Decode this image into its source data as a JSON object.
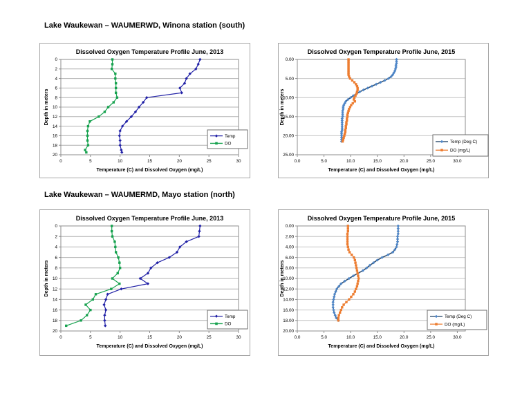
{
  "page": {
    "background": "#ffffff"
  },
  "sections": [
    {
      "heading": "Lake Waukewan – WAUMERWD, Winona station (south)"
    },
    {
      "heading": "Lake Waukewan – WAUMERMD, Mayo station (north)"
    }
  ],
  "colors": {
    "temp_2013": "#2121A6",
    "do_2013": "#17A24F",
    "temp_2015_line": "#2F4D6E",
    "temp_2015_marker": "#4E86C8",
    "do_2015": "#ED7D31",
    "grid_2013": "#B0B0B0",
    "grid_2015": "#C4C4C4",
    "plot_border": "#8C8C8C",
    "chart_border": "#A6A6A6",
    "legend_border": "#6E6E6E"
  },
  "chart_data": [
    {
      "id": "winona-2013",
      "type": "line",
      "title": "Dissolved Oxygen  Temperature Profile June, 2013",
      "xlabel": "Temperature (C) and Dissolved Oxygen (mg/L)",
      "ylabel": "Depth in meters",
      "x_range": [
        0,
        30
      ],
      "x_ticks": [
        0,
        5,
        10,
        15,
        20,
        25,
        30
      ],
      "x_tick_labels": [
        "0",
        "5",
        "10",
        "15",
        "20",
        "25",
        "30"
      ],
      "y_range": [
        0,
        20
      ],
      "y_ticks": [
        0,
        2,
        4,
        6,
        8,
        10,
        12,
        14,
        16,
        18,
        20
      ],
      "y_tick_labels": [
        "0",
        "2",
        "4",
        "6",
        "8",
        "10",
        "12",
        "14",
        "16",
        "18",
        "20"
      ],
      "grid": "horizontal",
      "legend_position": "inside-right-lower",
      "series": [
        {
          "name": "Temp",
          "marker": "diamond",
          "line_color": "#2121A6",
          "marker_color": "#2121A6",
          "depths": [
            0,
            1,
            2,
            3,
            4,
            5,
            6,
            7,
            8,
            9,
            10,
            11,
            12,
            13,
            14,
            15,
            16,
            17,
            18,
            19,
            19.5
          ],
          "values": [
            23.5,
            23.2,
            22.8,
            21.8,
            21.2,
            20.9,
            20.1,
            20.4,
            14.5,
            13.9,
            13.2,
            12.6,
            11.9,
            11.1,
            10.4,
            10.0,
            9.9,
            10.0,
            10.0,
            10.2,
            10.3
          ]
        },
        {
          "name": "DO",
          "marker": "square",
          "line_color": "#17A24F",
          "marker_color": "#17A24F",
          "depths": [
            0,
            1,
            2,
            3,
            4,
            5,
            6,
            7,
            8,
            9,
            10,
            11,
            12,
            13,
            14,
            15,
            16,
            17,
            18,
            19,
            19.5
          ],
          "values": [
            8.7,
            8.7,
            8.6,
            9.2,
            9.2,
            9.3,
            9.3,
            9.3,
            9.5,
            8.9,
            8.0,
            7.4,
            6.4,
            4.9,
            4.6,
            4.5,
            4.5,
            4.5,
            4.6,
            4.1,
            4.3
          ]
        }
      ]
    },
    {
      "id": "winona-2015",
      "type": "line",
      "title": "Dissolved Oxygen  Temperature Profile June, 2015",
      "xlabel": "Temperature (C) and Dissolved Oxygen (mg/L)",
      "ylabel": "Depth in meters",
      "x_range": [
        0,
        31.5
      ],
      "x_ticks": [
        0,
        5,
        10,
        15,
        20,
        25,
        30
      ],
      "x_tick_labels": [
        "0.0",
        "5.0",
        "10.0",
        "15.0",
        "20.0",
        "25.0",
        "30.0"
      ],
      "y_range": [
        0,
        25
      ],
      "y_ticks": [
        0,
        5,
        10,
        15,
        20,
        25
      ],
      "y_tick_labels": [
        "0.00",
        "5.00",
        "10.00",
        "15.00",
        "20.00",
        "25.00"
      ],
      "grid": "horizontal",
      "legend_position": "inside-right-lower",
      "series": [
        {
          "name": "Temp (Deg C)",
          "marker": "diamond",
          "line_color": "#2F4D6E",
          "marker_color": "#4E86C8",
          "depths": [
            0,
            0.5,
            1,
            1.5,
            2,
            2.5,
            3,
            3.5,
            4,
            4.5,
            5,
            5.5,
            6,
            6.5,
            7,
            7.5,
            8,
            8.5,
            9,
            9.5,
            10,
            10.5,
            11,
            11.5,
            12,
            12.5,
            13,
            13.5,
            14,
            14.5,
            15,
            15.5,
            16,
            16.5,
            17,
            17.5,
            18,
            18.5,
            19,
            19.5,
            20,
            20.5,
            21,
            21.5
          ],
          "values": [
            18.6,
            18.6,
            18.6,
            18.5,
            18.5,
            18.4,
            18.3,
            18.1,
            17.9,
            17.6,
            17.1,
            16.4,
            15.6,
            14.8,
            14.0,
            13.2,
            12.4,
            11.7,
            11.1,
            10.5,
            10.0,
            9.5,
            9.1,
            8.9,
            8.7,
            8.6,
            8.6,
            8.5,
            8.5,
            8.5,
            8.5,
            8.4,
            8.4,
            8.4,
            8.4,
            8.4,
            8.4,
            8.4,
            8.3,
            8.3,
            8.3,
            8.3,
            8.3,
            8.3
          ]
        },
        {
          "name": "DO (mg/L)",
          "marker": "square",
          "line_color": "#ED7D31",
          "marker_color": "#ED7D31",
          "depths": [
            0,
            0.5,
            1,
            1.5,
            2,
            2.5,
            3,
            3.5,
            4,
            4.5,
            5,
            5.5,
            6,
            6.5,
            7,
            7.5,
            8,
            8.5,
            9,
            9.5,
            10,
            10.5,
            11,
            11.5,
            12,
            12.5,
            13,
            13.5,
            14,
            14.5,
            15,
            15.5,
            16,
            16.5,
            17,
            17.5,
            18,
            18.5,
            19,
            19.5,
            20,
            20.5,
            21,
            21.5
          ],
          "values": [
            9.6,
            9.6,
            9.6,
            9.6,
            9.6,
            9.6,
            9.6,
            9.6,
            9.6,
            9.7,
            9.9,
            10.3,
            10.7,
            11.0,
            11.2,
            11.3,
            11.3,
            11.2,
            11.1,
            10.9,
            10.7,
            10.6,
            10.8,
            10.4,
            10.1,
            9.9,
            9.7,
            9.6,
            9.5,
            9.4,
            9.4,
            9.3,
            9.3,
            9.2,
            9.2,
            9.1,
            9.1,
            9.0,
            9.0,
            8.9,
            8.8,
            8.7,
            8.6,
            8.5
          ]
        }
      ]
    },
    {
      "id": "mayo-2013",
      "type": "line",
      "title": "Dissolved Oxygen  Temperature Profile June, 2013",
      "xlabel": "Temperature (C) and Dissolved Oxygen (mg/L)",
      "ylabel": "Depth in meters",
      "x_range": [
        0,
        30
      ],
      "x_ticks": [
        0,
        5,
        10,
        15,
        20,
        25,
        30
      ],
      "x_tick_labels": [
        "0",
        "5",
        "10",
        "15",
        "20",
        "25",
        "30"
      ],
      "y_range": [
        0,
        20
      ],
      "y_ticks": [
        0,
        2,
        4,
        6,
        8,
        10,
        12,
        14,
        16,
        18,
        20
      ],
      "y_tick_labels": [
        "0",
        "2",
        "4",
        "6",
        "8",
        "10",
        "12",
        "14",
        "16",
        "18",
        "20"
      ],
      "grid": "horizontal",
      "legend_position": "inside-right-lower",
      "series": [
        {
          "name": "Temp",
          "marker": "diamond",
          "line_color": "#2121A6",
          "marker_color": "#2121A6",
          "depths": [
            0,
            1,
            2,
            3,
            4,
            5,
            6,
            7,
            8,
            9,
            10,
            11,
            12,
            13,
            14,
            15,
            16,
            17,
            18,
            19
          ],
          "values": [
            23.5,
            23.4,
            23.3,
            21.2,
            20.1,
            19.6,
            18.3,
            16.3,
            15.2,
            14.7,
            13.4,
            14.7,
            10.2,
            7.9,
            7.6,
            7.3,
            7.6,
            7.4,
            7.4,
            7.5
          ]
        },
        {
          "name": "DO",
          "marker": "square",
          "line_color": "#17A24F",
          "marker_color": "#17A24F",
          "depths": [
            0,
            1,
            2,
            3,
            4,
            5,
            6,
            7,
            8,
            9,
            10,
            11,
            12,
            13,
            14,
            15,
            16,
            17,
            18,
            19
          ],
          "values": [
            8.6,
            8.6,
            8.7,
            9.1,
            9.2,
            9.3,
            9.7,
            9.9,
            10.0,
            9.6,
            8.7,
            9.9,
            8.5,
            5.9,
            5.4,
            4.2,
            5.0,
            4.4,
            3.4,
            0.9
          ]
        }
      ]
    },
    {
      "id": "mayo-2015",
      "type": "line",
      "title": "Dissolved Oxygen  Temperature Profile June, 2015",
      "xlabel": "Temperature (C) and Dissolved Oxygen (mg/L)",
      "ylabel": "Depth in meters",
      "x_range": [
        0,
        31.5
      ],
      "x_ticks": [
        0,
        5,
        10,
        15,
        20,
        25,
        30
      ],
      "x_tick_labels": [
        "0.0",
        "5.0",
        "10.0",
        "15.0",
        "20.0",
        "25.0",
        "30.0"
      ],
      "y_range": [
        0,
        20
      ],
      "y_ticks": [
        0,
        2,
        4,
        6,
        8,
        10,
        12,
        14,
        16,
        18,
        20
      ],
      "y_tick_labels": [
        "0.00",
        "2.00",
        "4.00",
        "6.00",
        "8.00",
        "10.00",
        "12.00",
        "14.00",
        "16.00",
        "18.00",
        "20.00"
      ],
      "grid": "horizontal",
      "legend_position": "inside-right-lower",
      "series": [
        {
          "name": "Temp (Deg C)",
          "marker": "diamond",
          "line_color": "#2F4D6E",
          "marker_color": "#4E86C8",
          "depths": [
            0,
            0.5,
            1,
            1.5,
            2,
            2.5,
            3,
            3.5,
            4,
            4.5,
            5,
            5.5,
            6,
            6.5,
            7,
            7.5,
            8,
            8.5,
            9,
            9.5,
            10,
            10.5,
            11,
            11.5,
            12,
            12.5,
            13,
            13.5,
            14,
            14.5,
            15,
            15.5,
            16,
            16.5,
            17,
            17.5,
            18
          ],
          "values": [
            18.9,
            18.9,
            18.9,
            18.9,
            18.8,
            18.8,
            18.8,
            18.7,
            18.6,
            18.3,
            17.9,
            17.0,
            15.9,
            15.0,
            14.3,
            13.6,
            13.0,
            12.3,
            11.4,
            10.5,
            9.7,
            8.9,
            8.2,
            7.8,
            7.4,
            7.2,
            7.0,
            6.9,
            6.8,
            6.7,
            6.7,
            6.7,
            6.8,
            6.9,
            7.1,
            7.3,
            7.7
          ]
        },
        {
          "name": "DO (mg/L)",
          "marker": "square",
          "line_color": "#ED7D31",
          "marker_color": "#ED7D31",
          "depths": [
            0,
            0.5,
            1,
            1.5,
            2,
            2.5,
            3,
            3.5,
            4,
            4.5,
            5,
            5.5,
            6,
            6.5,
            7,
            7.5,
            8,
            8.5,
            9,
            9.5,
            10,
            10.5,
            11,
            11.5,
            12,
            12.5,
            13,
            13.5,
            14,
            14.5,
            15,
            15.5,
            16,
            16.5,
            17,
            17.5,
            18
          ],
          "values": [
            9.5,
            9.5,
            9.5,
            9.4,
            9.4,
            9.4,
            9.4,
            9.4,
            9.5,
            9.6,
            9.8,
            10.2,
            10.6,
            10.8,
            10.9,
            11.0,
            11.1,
            11.2,
            11.3,
            11.4,
            11.5,
            11.4,
            11.3,
            11.2,
            11.0,
            10.8,
            10.5,
            10.1,
            9.7,
            9.2,
            8.7,
            8.4,
            8.2,
            8.0,
            7.8,
            7.7,
            7.7
          ]
        }
      ]
    }
  ]
}
